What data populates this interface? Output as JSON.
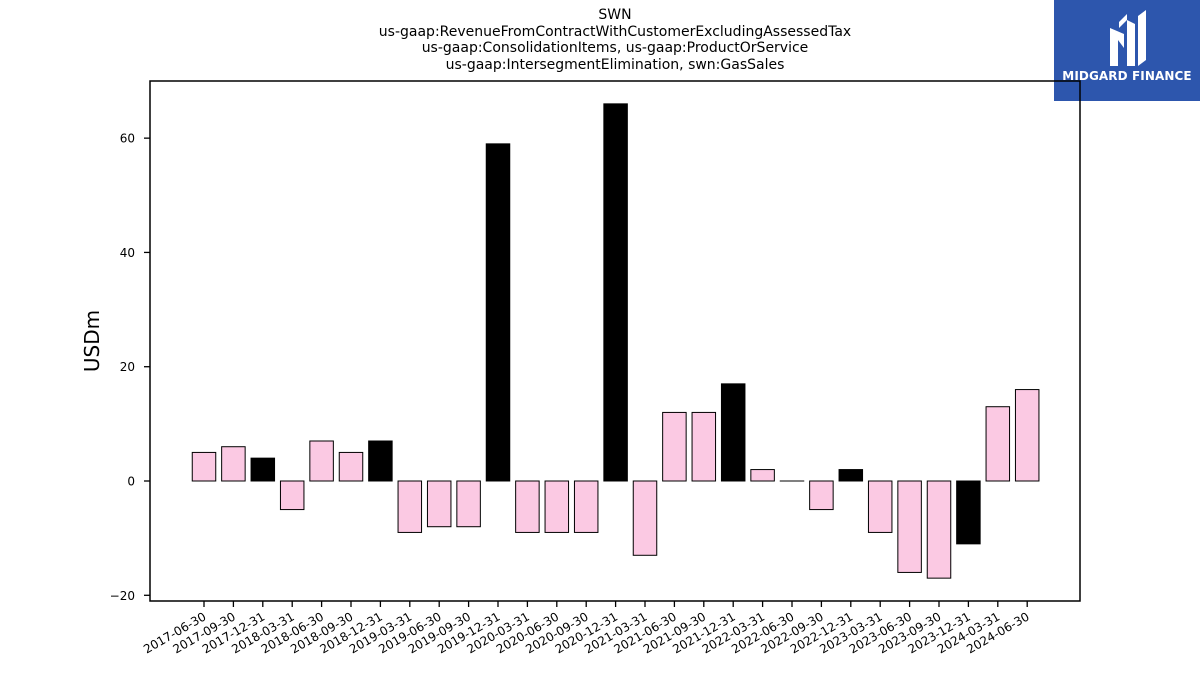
{
  "chart_data": {
    "type": "bar",
    "title_lines": [
      "SWN",
      "us-gaap:RevenueFromContractWithCustomerExcludingAssessedTax",
      "us-gaap:ConsolidationItems, us-gaap:ProductOrService",
      "us-gaap:IntersegmentElimination, swn:GasSales"
    ],
    "xlabel": "",
    "ylabel": "USDm",
    "ylim": [
      -21,
      70
    ],
    "yticks": [
      -20,
      0,
      20,
      40,
      60
    ],
    "grid": false,
    "categories": [
      "2017-06-30",
      "2017-09-30",
      "2017-12-31",
      "2018-03-31",
      "2018-06-30",
      "2018-09-30",
      "2018-12-31",
      "2019-03-31",
      "2019-06-30",
      "2019-09-30",
      "2019-12-31",
      "2020-03-31",
      "2020-06-30",
      "2020-09-30",
      "2020-12-31",
      "2021-03-31",
      "2021-06-30",
      "2021-09-30",
      "2021-12-31",
      "2022-03-31",
      "2022-06-30",
      "2022-09-30",
      "2022-12-31",
      "2023-03-31",
      "2023-06-30",
      "2023-09-30",
      "2023-12-31",
      "2024-03-31",
      "2024-06-30"
    ],
    "values": [
      5,
      6,
      4,
      -5,
      7,
      5,
      7,
      -9,
      -8,
      -8,
      59,
      -9,
      -9,
      -9,
      66,
      -13,
      12,
      12,
      17,
      2,
      0,
      -5,
      2,
      -9,
      -16,
      -17,
      -11,
      13,
      16
    ],
    "year_end": [
      false,
      false,
      true,
      false,
      false,
      false,
      true,
      false,
      false,
      false,
      true,
      false,
      false,
      false,
      true,
      false,
      false,
      false,
      true,
      false,
      false,
      false,
      true,
      false,
      false,
      false,
      true,
      false,
      false
    ],
    "colors": {
      "quarter": "#fbc9e3",
      "year_end": "#000000",
      "edge": "#000000"
    }
  },
  "logo": {
    "text": "MIDGARD FINANCE",
    "background": "#2d56ad"
  }
}
